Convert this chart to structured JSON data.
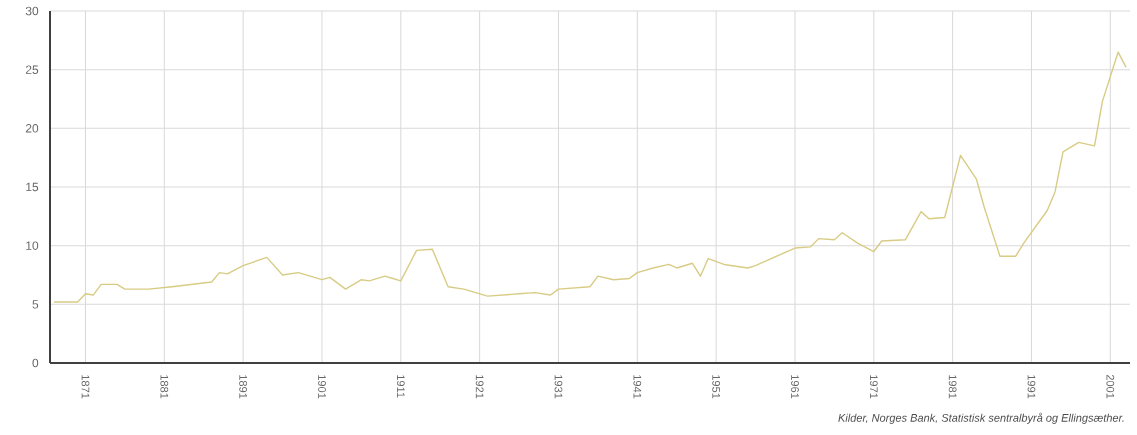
{
  "chart_data": {
    "type": "line",
    "color": "#d8cc85",
    "grid": true,
    "marker": "none",
    "line_style": "solid",
    "x": [
      1867,
      1870,
      1871,
      1872,
      1873,
      1875,
      1876,
      1879,
      1882,
      1887,
      1888,
      1889,
      1891,
      1894,
      1896,
      1898,
      1901,
      1902,
      1904,
      1906,
      1907,
      1909,
      1910,
      1911,
      1913,
      1915,
      1917,
      1919,
      1922,
      1926,
      1928,
      1930,
      1931,
      1935,
      1936,
      1938,
      1940,
      1941,
      1943,
      1945,
      1946,
      1948,
      1949,
      1950,
      1952,
      1955,
      1956,
      1961,
      1963,
      1964,
      1966,
      1967,
      1969,
      1971,
      1972,
      1975,
      1977,
      1978,
      1980,
      1982,
      1984,
      1985,
      1987,
      1989,
      1990,
      1993,
      1994,
      1995,
      1997,
      1999,
      2000,
      2002,
      2003
    ],
    "values": [
      5.2,
      5.2,
      5.9,
      5.8,
      6.7,
      6.7,
      6.3,
      6.3,
      6.5,
      6.9,
      7.7,
      7.6,
      8.3,
      9.0,
      7.5,
      7.7,
      7.1,
      7.3,
      6.3,
      7.1,
      7.0,
      7.4,
      7.2,
      7.0,
      9.6,
      9.7,
      6.5,
      6.3,
      5.7,
      5.9,
      6.0,
      5.8,
      6.3,
      6.5,
      7.4,
      7.1,
      7.2,
      7.7,
      8.1,
      8.4,
      8.1,
      8.5,
      7.4,
      8.9,
      8.4,
      8.1,
      8.3,
      9.8,
      9.9,
      10.6,
      10.5,
      11.1,
      10.2,
      9.5,
      10.4,
      10.5,
      12.9,
      12.3,
      12.4,
      17.7,
      15.7,
      13.3,
      9.1,
      9.1,
      10.2,
      13.0,
      14.6,
      18.0,
      18.8,
      18.5,
      22.3,
      26.5,
      25.2
    ],
    "xlim": [
      1866.5,
      2003.5
    ],
    "ylim": [
      0,
      30
    ],
    "xticks": [
      1871,
      1881,
      1891,
      1901,
      1911,
      1921,
      1931,
      1941,
      1951,
      1961,
      1971,
      1981,
      1991,
      2001
    ],
    "yticks": [
      0,
      5,
      10,
      15,
      20,
      25,
      30
    ],
    "annotations": [
      "Kilder, Norges Bank, Statistisk sentralbyrå og Ellingsæther."
    ]
  }
}
